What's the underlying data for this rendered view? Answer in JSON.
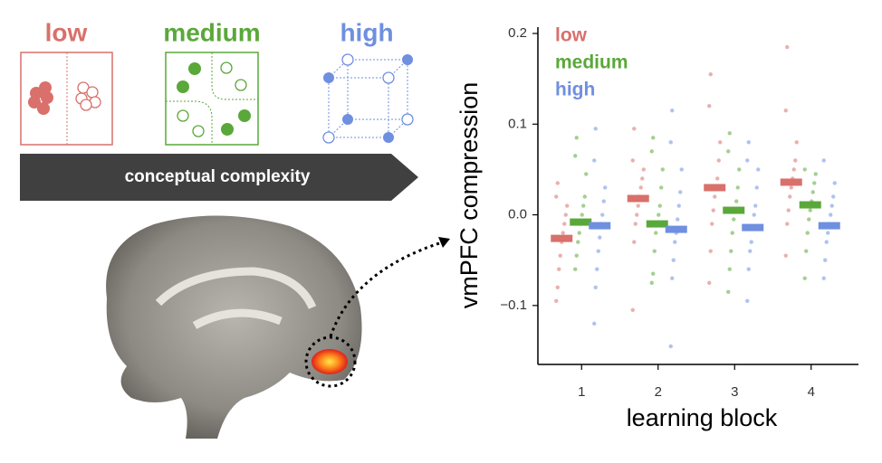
{
  "chart_data": {
    "type": "strip",
    "ylabel": "vmPFC compression",
    "xlabel": "learning block",
    "categories": [
      "1",
      "2",
      "3",
      "4"
    ],
    "ylim": [
      -0.165,
      0.207
    ],
    "yticks": [
      {
        "value": -0.1,
        "label": "−0.1"
      },
      {
        "value": 0,
        "label": "0.0"
      },
      0.1,
      0.2
    ],
    "legend": "top-left",
    "series": [
      {
        "name": "low",
        "color": "#d9706b",
        "values": [
          -0.026,
          0.018,
          0.03,
          0.036
        ],
        "points": [
          [
            -0.095,
            -0.08,
            -0.06,
            -0.045,
            -0.03,
            -0.02,
            -0.01,
            0.0,
            0.01,
            0.02,
            0.035
          ],
          [
            -0.105,
            -0.03,
            -0.01,
            0.0,
            0.01,
            0.02,
            0.03,
            0.04,
            0.05,
            0.06,
            0.095
          ],
          [
            -0.075,
            -0.04,
            -0.01,
            0.005,
            0.02,
            0.03,
            0.04,
            0.06,
            0.08,
            0.12,
            0.155
          ],
          [
            -0.045,
            -0.01,
            0.005,
            0.02,
            0.03,
            0.04,
            0.05,
            0.06,
            0.08,
            0.115,
            0.185
          ]
        ]
      },
      {
        "name": "medium",
        "color": "#5aa83a",
        "values": [
          -0.008,
          -0.01,
          0.005,
          0.011
        ],
        "points": [
          [
            -0.06,
            -0.045,
            -0.03,
            -0.02,
            -0.01,
            0.0,
            0.01,
            0.02,
            0.045,
            0.065,
            0.085
          ],
          [
            -0.075,
            -0.065,
            -0.04,
            -0.02,
            -0.01,
            0.0,
            0.01,
            0.03,
            0.05,
            0.07,
            0.085
          ],
          [
            -0.085,
            -0.06,
            -0.04,
            -0.02,
            -0.005,
            0.005,
            0.015,
            0.03,
            0.05,
            0.07,
            0.09
          ],
          [
            -0.07,
            -0.04,
            -0.02,
            -0.005,
            0.005,
            0.015,
            0.025,
            0.035,
            0.045,
            0.05
          ]
        ]
      },
      {
        "name": "high",
        "color": "#6f8fe0",
        "values": [
          -0.012,
          -0.016,
          -0.014,
          -0.012
        ],
        "points": [
          [
            -0.12,
            -0.08,
            -0.06,
            -0.04,
            -0.025,
            -0.01,
            0.0,
            0.015,
            0.03,
            0.06,
            0.095
          ],
          [
            -0.145,
            -0.07,
            -0.05,
            -0.03,
            -0.02,
            -0.005,
            0.01,
            0.025,
            0.05,
            0.08,
            0.115
          ],
          [
            -0.095,
            -0.06,
            -0.04,
            -0.03,
            -0.015,
            0.0,
            0.01,
            0.03,
            0.05,
            0.06,
            0.08
          ],
          [
            -0.07,
            -0.05,
            -0.03,
            -0.02,
            -0.01,
            0.0,
            0.01,
            0.02,
            0.035,
            0.06
          ]
        ]
      }
    ]
  },
  "schematic": {
    "arrow_label": "conceptual complexity"
  }
}
